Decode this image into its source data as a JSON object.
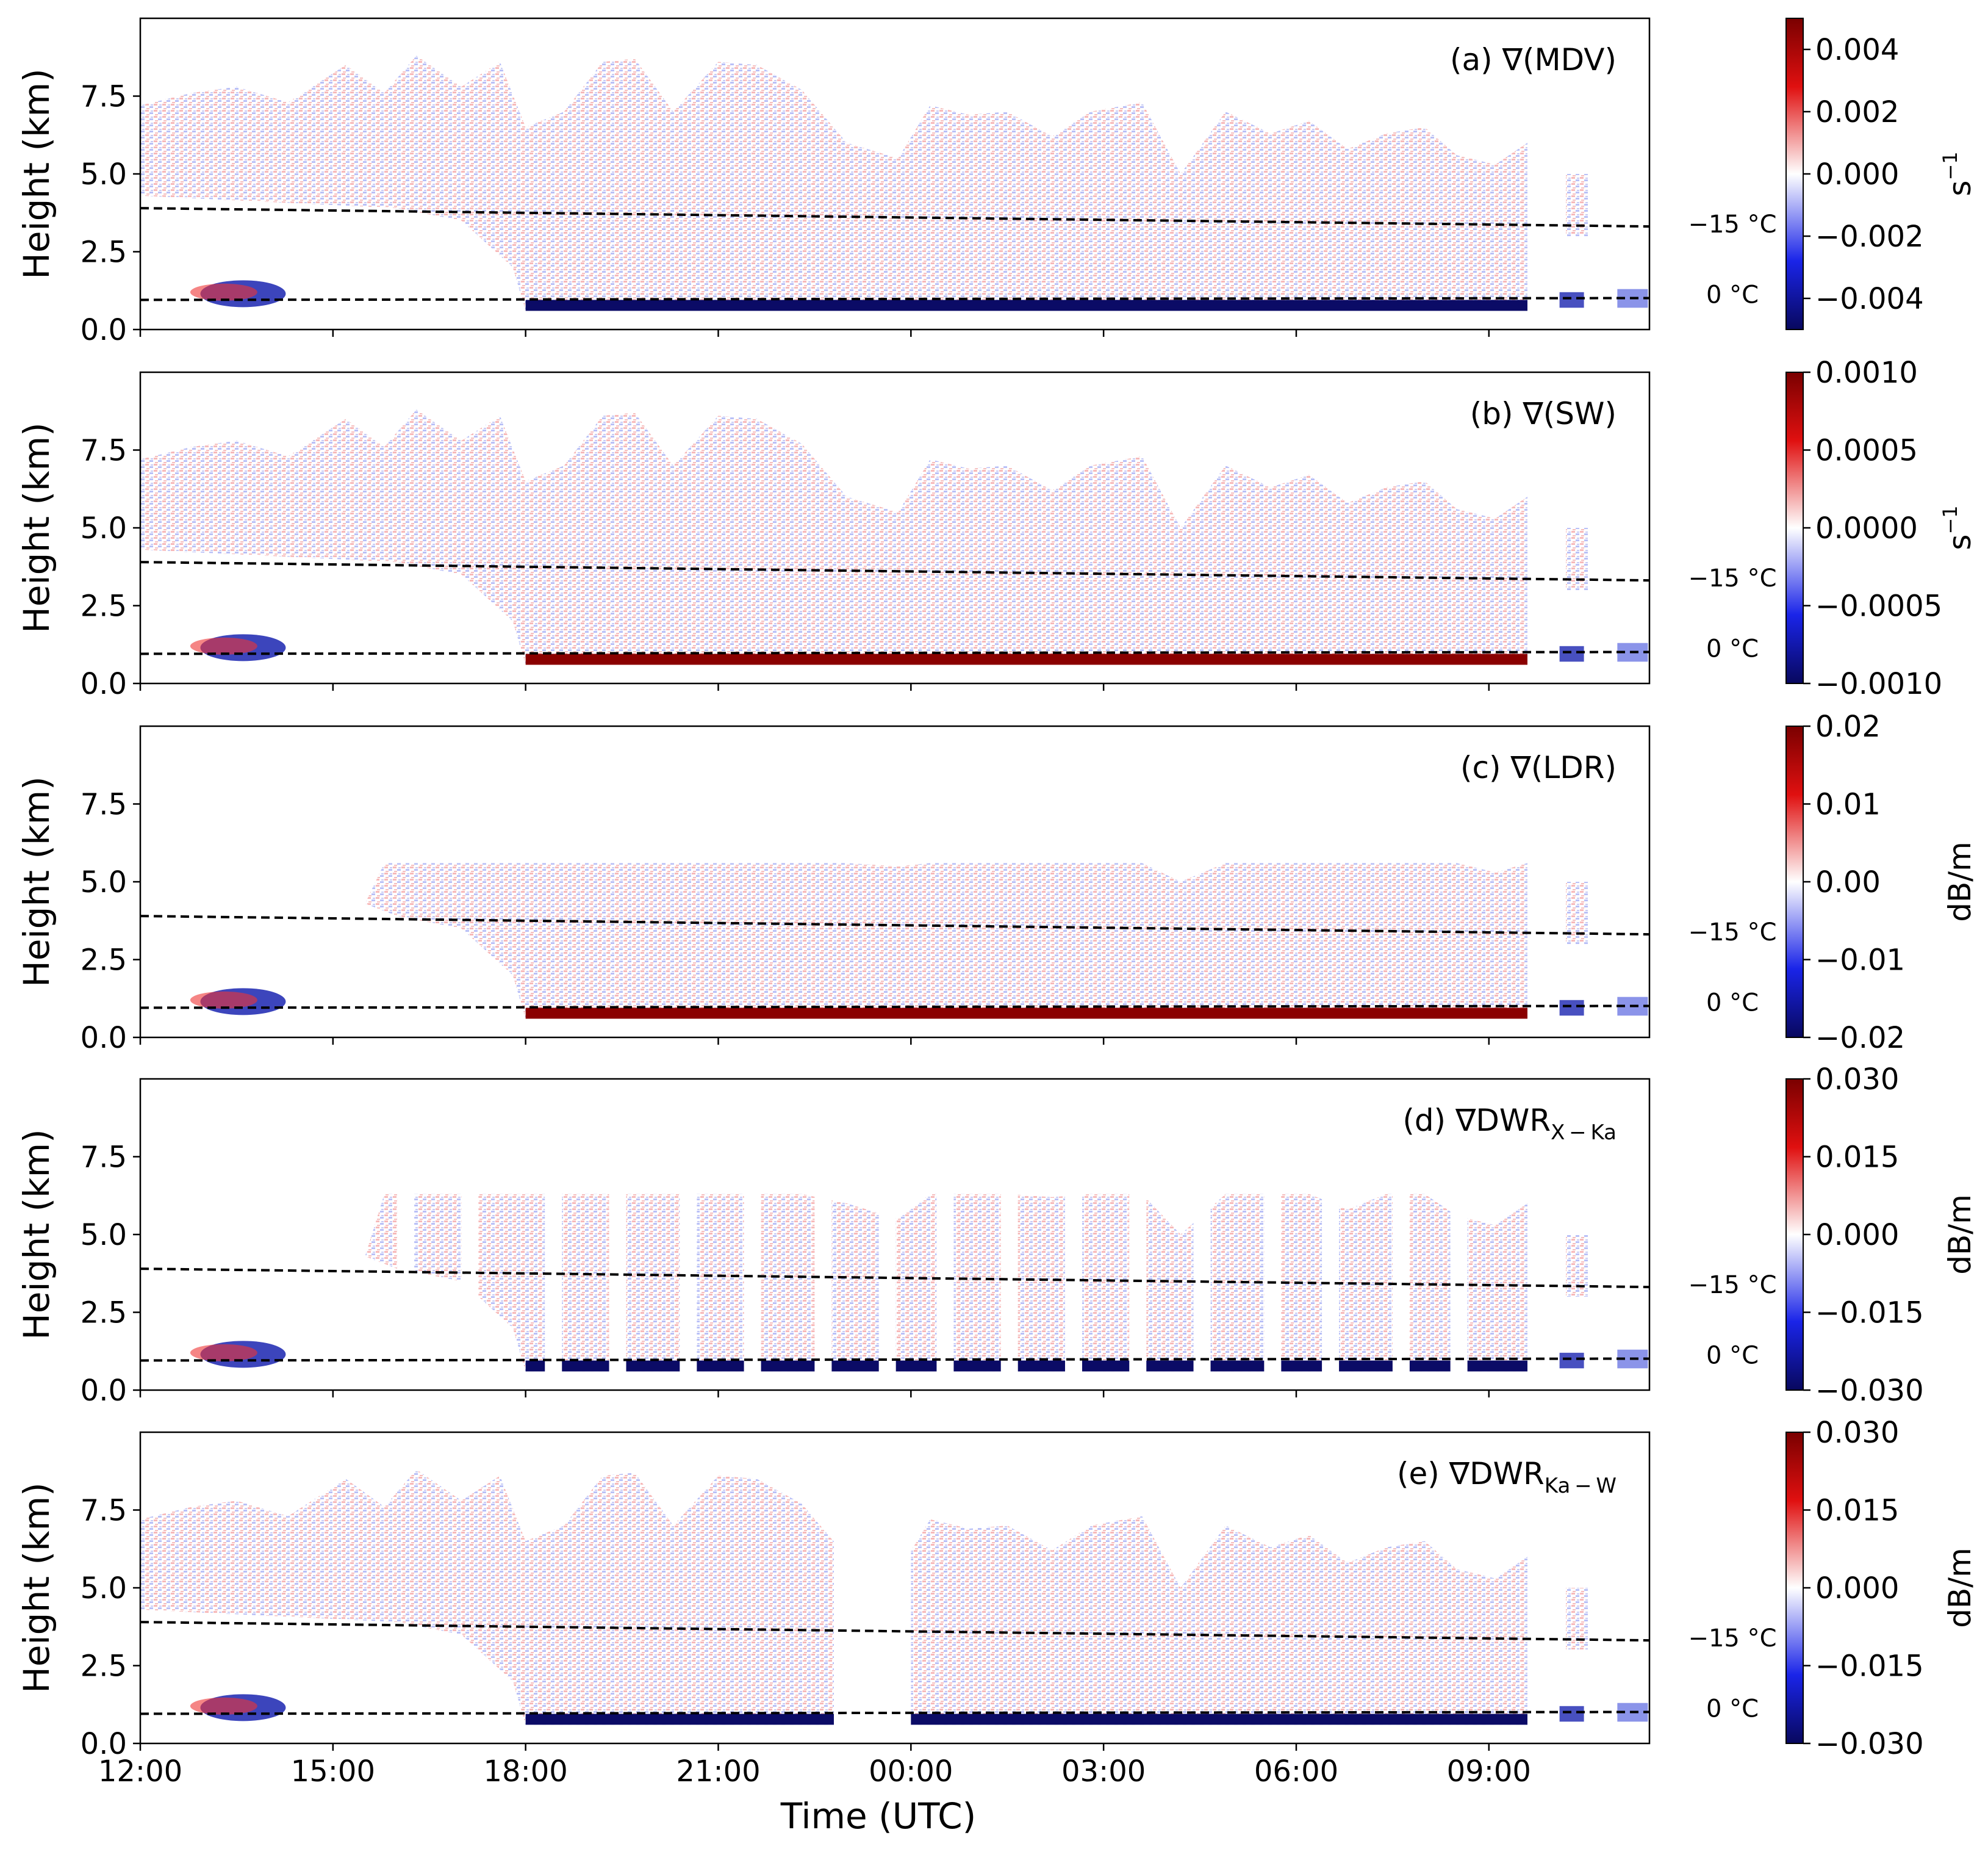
{
  "chart_data": [
    {
      "type": "heatmap",
      "panel_label": "(a) ∇(MDV)",
      "field": "MDV",
      "ylabel": "Height (km)",
      "ylim": [
        0,
        10
      ],
      "y_ticks": [
        "0.0",
        "2.5",
        "5.0",
        "7.5"
      ],
      "colorbar": {
        "ticks": [
          "0.004",
          "0.002",
          "0.000",
          "−0.002",
          "−0.004"
        ],
        "range": [
          -0.005,
          0.005
        ],
        "unit": "s",
        "unit_sup": "−1"
      },
      "isotherms": [
        {
          "label": "−15 °C",
          "height_km": 3.9
        },
        {
          "label": "0 °C",
          "height_km": 1.05
        }
      ],
      "colors": {
        "low": "#08085e",
        "mid": "#ffffff",
        "high": "#7a0000"
      }
    },
    {
      "type": "heatmap",
      "panel_label": "(b) ∇(SW)",
      "field": "SW",
      "ylabel": "Height (km)",
      "ylim": [
        0,
        10
      ],
      "y_ticks": [
        "0.0",
        "2.5",
        "5.0",
        "7.5"
      ],
      "colorbar": {
        "ticks": [
          "0.0010",
          "0.0005",
          "0.0000",
          "−0.0005",
          "−0.0010"
        ],
        "range": [
          -0.001,
          0.001
        ],
        "unit": "s",
        "unit_sup": "−1"
      },
      "isotherms": [
        {
          "label": "−15 °C",
          "height_km": 3.9
        },
        {
          "label": "0 °C",
          "height_km": 1.05
        }
      ],
      "colors": {
        "low": "#08085e",
        "mid": "#ffffff",
        "high": "#7a0000"
      }
    },
    {
      "type": "heatmap",
      "panel_label": "(c) ∇(LDR)",
      "field": "LDR",
      "ylabel": "Height (km)",
      "ylim": [
        0,
        10
      ],
      "y_ticks": [
        "0.0",
        "2.5",
        "5.0",
        "7.5"
      ],
      "colorbar": {
        "ticks": [
          "0.02",
          "0.01",
          "0.00",
          "−0.01",
          "−0.02"
        ],
        "range": [
          -0.02,
          0.02
        ],
        "unit": "dB/m",
        "unit_sup": ""
      },
      "isotherms": [
        {
          "label": "−15 °C",
          "height_km": 3.9
        },
        {
          "label": "0 °C",
          "height_km": 1.05
        }
      ],
      "colors": {
        "low": "#08085e",
        "mid": "#ffffff",
        "high": "#7a0000"
      }
    },
    {
      "type": "heatmap",
      "panel_label": "(d) ∇DWR",
      "panel_label_sub": "X − Ka",
      "field": "DWR X-Ka",
      "ylabel": "Height (km)",
      "ylim": [
        0,
        10
      ],
      "y_ticks": [
        "0.0",
        "2.5",
        "5.0",
        "7.5"
      ],
      "colorbar": {
        "ticks": [
          "0.030",
          "0.015",
          "0.000",
          "−0.015",
          "−0.030"
        ],
        "range": [
          -0.03,
          0.03
        ],
        "unit": "dB/m",
        "unit_sup": ""
      },
      "isotherms": [
        {
          "label": "−15 °C",
          "height_km": 3.9
        },
        {
          "label": "0 °C",
          "height_km": 1.05
        }
      ],
      "colors": {
        "low": "#08085e",
        "mid": "#ffffff",
        "high": "#7a0000"
      }
    },
    {
      "type": "heatmap",
      "panel_label": "(e) ∇DWR",
      "panel_label_sub": "Ka − W",
      "field": "DWR Ka-W",
      "ylabel": "Height (km)",
      "ylim": [
        0,
        10
      ],
      "y_ticks": [
        "0.0",
        "2.5",
        "5.0",
        "7.5"
      ],
      "x_ticks": [
        "12:00",
        "15:00",
        "18:00",
        "21:00",
        "00:00",
        "03:00",
        "06:00",
        "09:00"
      ],
      "xlabel": "Time (UTC)",
      "colorbar": {
        "ticks": [
          "0.030",
          "0.015",
          "0.000",
          "−0.015",
          "−0.030"
        ],
        "range": [
          -0.03,
          0.03
        ],
        "unit": "dB/m",
        "unit_sup": ""
      },
      "isotherms": [
        {
          "label": "−15 °C",
          "height_km": 3.9
        },
        {
          "label": "0 °C",
          "height_km": 1.05
        }
      ],
      "colors": {
        "low": "#08085e",
        "mid": "#ffffff",
        "high": "#7a0000"
      }
    }
  ]
}
